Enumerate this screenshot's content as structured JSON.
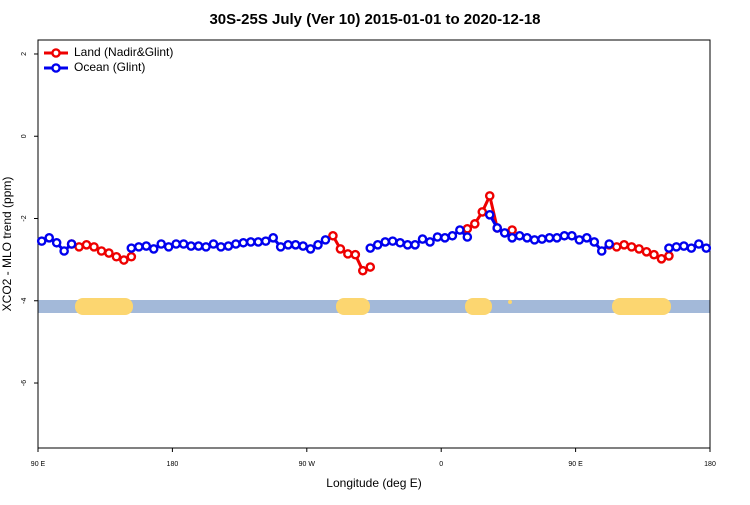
{
  "chart_data": {
    "type": "line",
    "title": "30S-25S July (Ver 10)   2015-01-01 to 2020-12-18",
    "x_label": "Longitude (deg E)",
    "y_label": "XCO2 - MLO trend (ppm)",
    "legend": "top-left",
    "xlim": [
      90,
      540
    ],
    "xticks": [
      {
        "value": 90,
        "label": "90 E"
      },
      180,
      {
        "value": 270,
        "label": "90 W"
      },
      {
        "value": 360,
        "label": "0"
      },
      {
        "value": 450,
        "label": "90 E"
      },
      {
        "value": 540,
        "label": "180"
      }
    ],
    "ylim": [
      -7.58,
      2.34
    ],
    "yticks": [
      2,
      0,
      -2,
      -4,
      -6
    ],
    "x": [
      92.5,
      97.5,
      102.5,
      107.5,
      112.5,
      117.5,
      122.5,
      127.5,
      132.5,
      137.5,
      142.5,
      147.5,
      152.5,
      157.5,
      162.5,
      167.5,
      172.5,
      177.5,
      182.5,
      187.5,
      192.5,
      197.5,
      202.5,
      207.5,
      212.5,
      217.5,
      222.5,
      227.5,
      232.5,
      237.5,
      242.5,
      247.5,
      252.5,
      257.5,
      262.5,
      267.5,
      272.5,
      277.5,
      282.5,
      287.5,
      292.5,
      297.5,
      302.5,
      307.5,
      312.5,
      317.5,
      322.5,
      327.5,
      332.5,
      337.5,
      342.5,
      347.5,
      352.5,
      357.5,
      362.5,
      367.5,
      372.5,
      377.5,
      382.5,
      387.5,
      392.5,
      397.5,
      402.5,
      407.5,
      412.5,
      417.5,
      422.5,
      427.5,
      432.5,
      437.5,
      442.5,
      447.5,
      452.5,
      457.5,
      462.5,
      467.5,
      472.5,
      477.5,
      482.5,
      487.5,
      492.5,
      497.5,
      502.5,
      507.5,
      512.5,
      517.5,
      522.5,
      527.5,
      532.5,
      537.5
    ],
    "series": [
      {
        "name": "Land (Nadir&Glint)",
        "color": "#ee0000",
        "values": [
          null,
          null,
          null,
          null,
          -2.62,
          -2.69,
          -2.64,
          -2.69,
          -2.79,
          -2.84,
          -2.93,
          -3.01,
          -2.93,
          null,
          null,
          null,
          null,
          null,
          null,
          null,
          null,
          null,
          null,
          null,
          null,
          null,
          null,
          null,
          null,
          null,
          null,
          null,
          null,
          null,
          null,
          null,
          null,
          null,
          null,
          -2.42,
          -2.74,
          -2.86,
          -2.88,
          -3.27,
          -3.18,
          null,
          null,
          null,
          null,
          null,
          null,
          null,
          null,
          null,
          null,
          null,
          null,
          -2.25,
          -2.13,
          -1.84,
          -1.45,
          -2.23,
          null,
          -2.28,
          null,
          null,
          null,
          null,
          null,
          null,
          null,
          null,
          null,
          null,
          null,
          null,
          -2.64,
          -2.69,
          -2.64,
          -2.69,
          -2.74,
          -2.81,
          -2.88,
          -2.98,
          -2.91,
          null,
          null,
          null,
          null,
          null
        ]
      },
      {
        "name": "Ocean (Glint)",
        "color": "#0000ee",
        "values": [
          -2.55,
          -2.47,
          -2.59,
          -2.79,
          -2.62,
          null,
          null,
          null,
          null,
          null,
          null,
          null,
          -2.72,
          -2.69,
          -2.67,
          -2.74,
          -2.62,
          -2.69,
          -2.62,
          -2.62,
          -2.67,
          -2.67,
          -2.69,
          -2.62,
          -2.69,
          -2.67,
          -2.62,
          -2.59,
          -2.57,
          -2.57,
          -2.55,
          -2.47,
          -2.69,
          -2.64,
          -2.64,
          -2.67,
          -2.74,
          -2.64,
          -2.52,
          null,
          null,
          null,
          null,
          null,
          -2.72,
          -2.64,
          -2.57,
          -2.55,
          -2.59,
          -2.64,
          -2.64,
          -2.5,
          -2.57,
          -2.45,
          -2.47,
          -2.42,
          -2.28,
          -2.45,
          null,
          null,
          -1.91,
          -2.23,
          -2.35,
          -2.47,
          -2.42,
          -2.47,
          -2.52,
          -2.5,
          -2.47,
          -2.47,
          -2.42,
          -2.42,
          -2.52,
          -2.47,
          -2.57,
          -2.79,
          -2.62,
          null,
          null,
          null,
          null,
          null,
          null,
          null,
          -2.72,
          -2.69,
          -2.67,
          -2.72,
          -2.62,
          -2.72
        ]
      }
    ]
  }
}
